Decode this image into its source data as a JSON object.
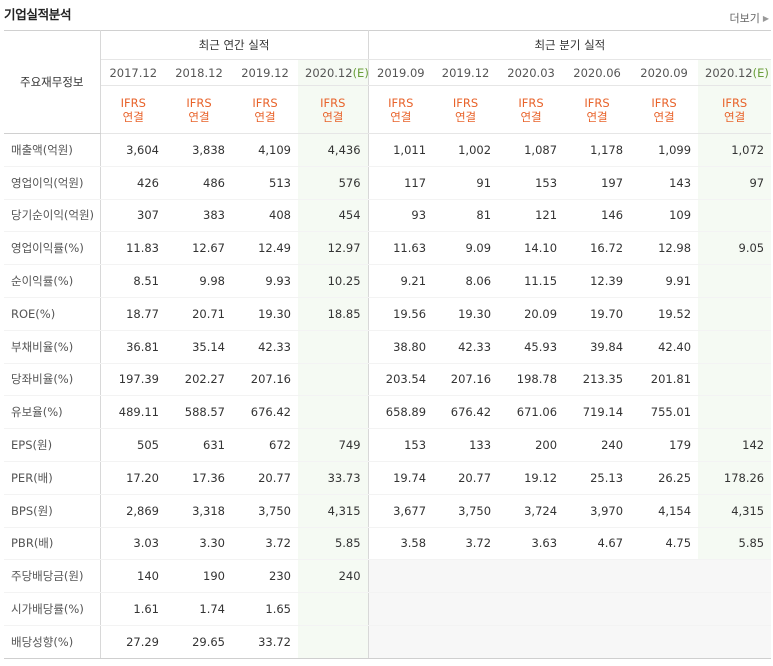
{
  "header": {
    "title": "기업실적분석",
    "more_label": "더보기"
  },
  "table": {
    "row_header": "주요재무정보",
    "groups": {
      "annual": "최근 연간 실적",
      "quarterly": "최근 분기 실적"
    },
    "annual_periods": [
      "2017.12",
      "2018.12",
      "2019.12",
      "2020.12"
    ],
    "quarter_periods": [
      "2019.09",
      "2019.12",
      "2020.03",
      "2020.06",
      "2020.09",
      "2020.12"
    ],
    "estimate_mark": "(E)",
    "ifrs": {
      "top": "IFRS",
      "bottom": "연결"
    },
    "rows": [
      {
        "label": "매출액(억원)",
        "annual": [
          "3,604",
          "3,838",
          "4,109",
          "4,436"
        ],
        "quarterly": [
          "1,011",
          "1,002",
          "1,087",
          "1,178",
          "1,099",
          "1,072"
        ]
      },
      {
        "label": "영업이익(억원)",
        "annual": [
          "426",
          "486",
          "513",
          "576"
        ],
        "quarterly": [
          "117",
          "91",
          "153",
          "197",
          "143",
          "97"
        ]
      },
      {
        "label": "당기순이익(억원)",
        "annual": [
          "307",
          "383",
          "408",
          "454"
        ],
        "quarterly": [
          "93",
          "81",
          "121",
          "146",
          "109",
          ""
        ]
      },
      {
        "label": "영업이익률(%)",
        "annual": [
          "11.83",
          "12.67",
          "12.49",
          "12.97"
        ],
        "quarterly": [
          "11.63",
          "9.09",
          "14.10",
          "16.72",
          "12.98",
          "9.05"
        ]
      },
      {
        "label": "순이익률(%)",
        "annual": [
          "8.51",
          "9.98",
          "9.93",
          "10.25"
        ],
        "quarterly": [
          "9.21",
          "8.06",
          "11.15",
          "12.39",
          "9.91",
          ""
        ]
      },
      {
        "label": "ROE(%)",
        "annual": [
          "18.77",
          "20.71",
          "19.30",
          "18.85"
        ],
        "quarterly": [
          "19.56",
          "19.30",
          "20.09",
          "19.70",
          "19.52",
          ""
        ]
      },
      {
        "label": "부채비율(%)",
        "annual": [
          "36.81",
          "35.14",
          "42.33",
          ""
        ],
        "quarterly": [
          "38.80",
          "42.33",
          "45.93",
          "39.84",
          "42.40",
          ""
        ]
      },
      {
        "label": "당좌비율(%)",
        "annual": [
          "197.39",
          "202.27",
          "207.16",
          ""
        ],
        "quarterly": [
          "203.54",
          "207.16",
          "198.78",
          "213.35",
          "201.81",
          ""
        ]
      },
      {
        "label": "유보율(%)",
        "annual": [
          "489.11",
          "588.57",
          "676.42",
          ""
        ],
        "quarterly": [
          "658.89",
          "676.42",
          "671.06",
          "719.14",
          "755.01",
          ""
        ]
      },
      {
        "label": "EPS(원)",
        "annual": [
          "505",
          "631",
          "672",
          "749"
        ],
        "quarterly": [
          "153",
          "133",
          "200",
          "240",
          "179",
          "142"
        ]
      },
      {
        "label": "PER(배)",
        "annual": [
          "17.20",
          "17.36",
          "20.77",
          "33.73"
        ],
        "quarterly": [
          "19.74",
          "20.77",
          "19.12",
          "25.13",
          "26.25",
          "178.26"
        ]
      },
      {
        "label": "BPS(원)",
        "annual": [
          "2,869",
          "3,318",
          "3,750",
          "4,315"
        ],
        "quarterly": [
          "3,677",
          "3,750",
          "3,724",
          "3,970",
          "4,154",
          "4,315"
        ]
      },
      {
        "label": "PBR(배)",
        "annual": [
          "3.03",
          "3.30",
          "3.72",
          "5.85"
        ],
        "quarterly": [
          "3.58",
          "3.72",
          "3.63",
          "4.67",
          "4.75",
          "5.85"
        ]
      },
      {
        "label": "주당배당금(원)",
        "annual": [
          "140",
          "190",
          "230",
          "240"
        ],
        "quarterly": [
          "",
          "",
          "",
          "",
          "",
          ""
        ]
      },
      {
        "label": "시가배당률(%)",
        "annual": [
          "1.61",
          "1.74",
          "1.65",
          ""
        ],
        "quarterly": [
          "",
          "",
          "",
          "",
          "",
          ""
        ]
      },
      {
        "label": "배당성향(%)",
        "annual": [
          "27.29",
          "29.65",
          "33.72",
          ""
        ],
        "quarterly": [
          "",
          "",
          "",
          "",
          "",
          ""
        ]
      }
    ]
  },
  "colors": {
    "ifrs": "#e8632b",
    "estimate": "#6a9e3a",
    "estimate_bg": "#f5faf3",
    "empty_bg": "#f7f7f7"
  }
}
